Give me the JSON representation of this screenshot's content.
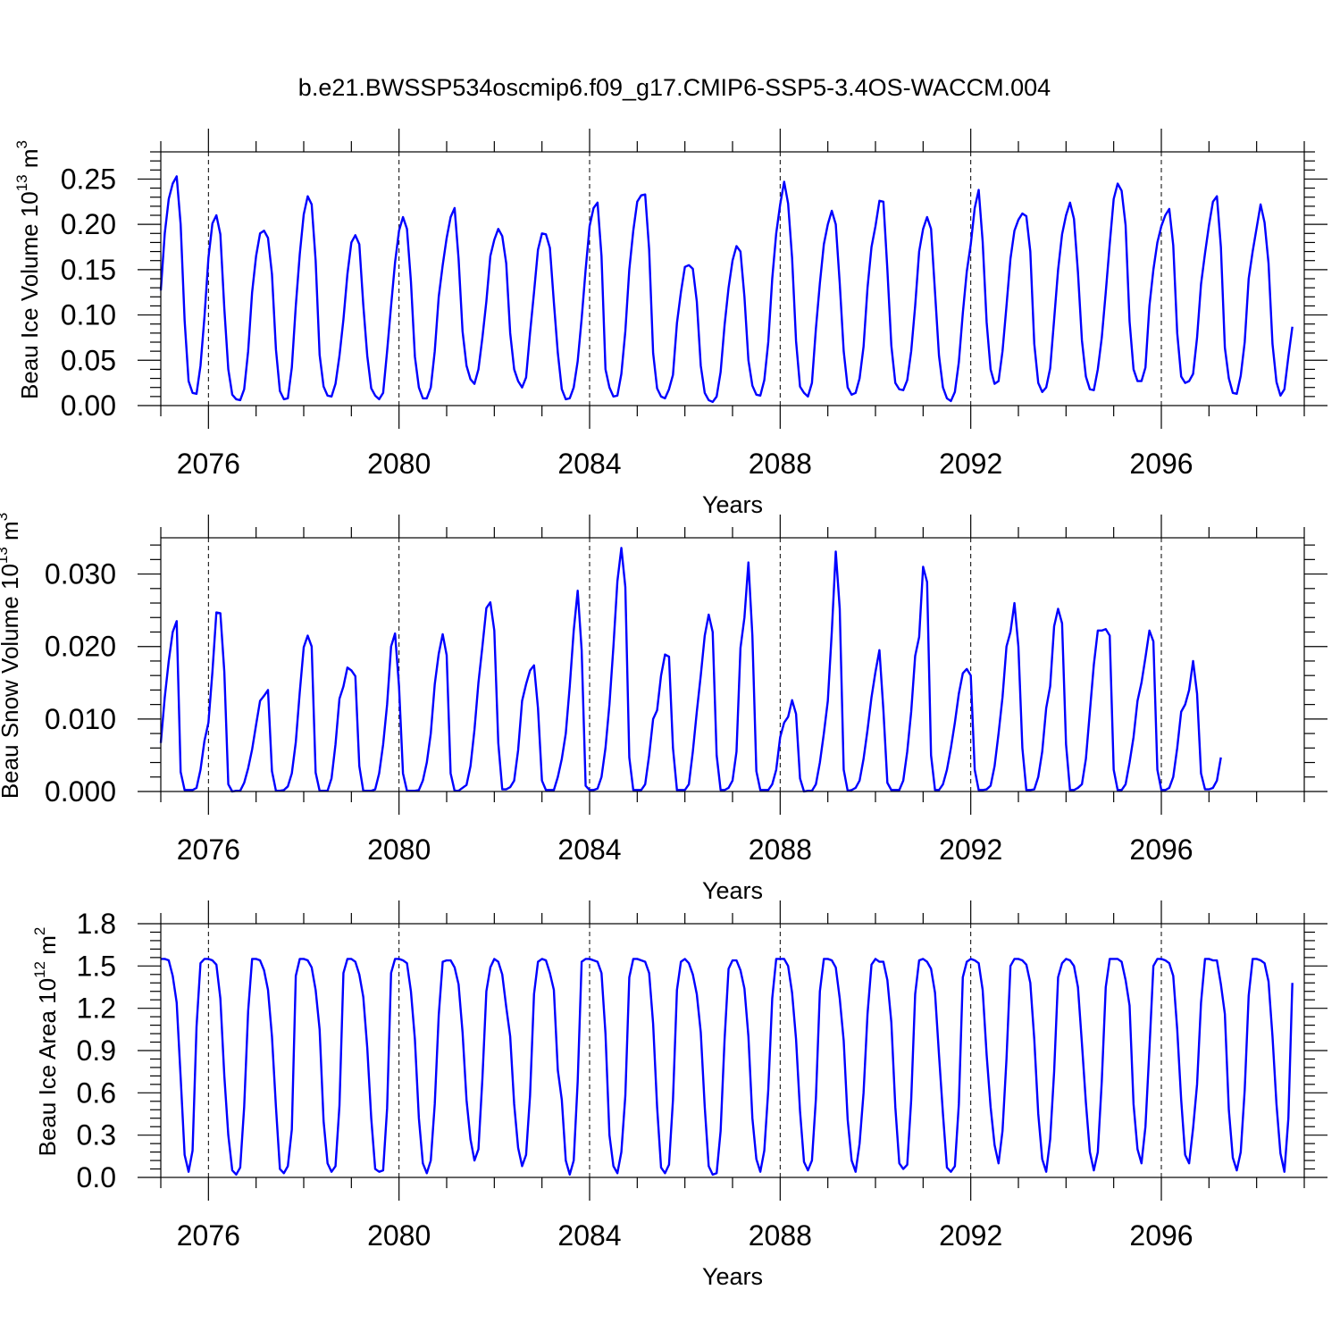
{
  "figure": {
    "title": "b.e21.BWSSP534oscmip6.f09_g17.CMIP6-SSP5-3.4OS-WACCM.004"
  },
  "colors": {
    "series": "#0000ff",
    "axes": "#000000",
    "grid": "#000000"
  },
  "chart_data": [
    {
      "type": "line",
      "ylabel_main": "Beau Ice Volume 10",
      "ylabel_exp": "13",
      "ylabel_unit": " m",
      "ylabel_unit_exp": "3",
      "xlabel": "Years",
      "ylim": [
        0,
        0.28
      ],
      "yticks": [
        "0.00",
        "0.05",
        "0.10",
        "0.15",
        "0.20",
        "0.25"
      ],
      "xticks": [
        "2076",
        "2080",
        "2084",
        "2088",
        "2092",
        "2096"
      ],
      "xlim": [
        2075.0,
        2099.0
      ],
      "series": [
        {
          "start": 2075.0,
          "step_months": 1,
          "values": [
            0.127,
            0.19,
            0.228,
            0.245,
            0.253,
            0.2,
            0.094,
            0.027,
            0.014,
            0.013,
            0.044,
            0.098,
            0.163,
            0.201,
            0.21,
            0.189,
            0.107,
            0.04,
            0.012,
            0.007,
            0.006,
            0.018,
            0.06,
            0.125,
            0.165,
            0.19,
            0.193,
            0.185,
            0.145,
            0.062,
            0.016,
            0.007,
            0.008,
            0.042,
            0.11,
            0.167,
            0.211,
            0.231,
            0.222,
            0.16,
            0.056,
            0.021,
            0.011,
            0.01,
            0.024,
            0.055,
            0.095,
            0.145,
            0.18,
            0.188,
            0.178,
            0.111,
            0.055,
            0.019,
            0.011,
            0.007,
            0.014,
            0.06,
            0.11,
            0.158,
            0.193,
            0.208,
            0.195,
            0.137,
            0.054,
            0.02,
            0.008,
            0.008,
            0.02,
            0.06,
            0.12,
            0.155,
            0.185,
            0.208,
            0.218,
            0.162,
            0.082,
            0.044,
            0.029,
            0.024,
            0.04,
            0.075,
            0.115,
            0.165,
            0.183,
            0.195,
            0.187,
            0.157,
            0.08,
            0.04,
            0.027,
            0.02,
            0.031,
            0.08,
            0.125,
            0.172,
            0.19,
            0.189,
            0.174,
            0.114,
            0.058,
            0.018,
            0.007,
            0.008,
            0.02,
            0.049,
            0.096,
            0.15,
            0.198,
            0.218,
            0.224,
            0.165,
            0.04,
            0.02,
            0.01,
            0.011,
            0.035,
            0.082,
            0.15,
            0.193,
            0.225,
            0.232,
            0.233,
            0.172,
            0.058,
            0.019,
            0.01,
            0.008,
            0.018,
            0.034,
            0.091,
            0.125,
            0.153,
            0.155,
            0.151,
            0.115,
            0.044,
            0.014,
            0.006,
            0.004,
            0.01,
            0.037,
            0.089,
            0.13,
            0.16,
            0.176,
            0.17,
            0.12,
            0.05,
            0.022,
            0.012,
            0.011,
            0.028,
            0.07,
            0.14,
            0.19,
            0.222,
            0.247,
            0.223,
            0.163,
            0.071,
            0.021,
            0.014,
            0.01,
            0.025,
            0.085,
            0.135,
            0.178,
            0.2,
            0.215,
            0.2,
            0.135,
            0.06,
            0.02,
            0.012,
            0.014,
            0.03,
            0.065,
            0.13,
            0.175,
            0.198,
            0.226,
            0.225,
            0.15,
            0.066,
            0.025,
            0.018,
            0.017,
            0.028,
            0.06,
            0.11,
            0.17,
            0.195,
            0.208,
            0.195,
            0.125,
            0.055,
            0.02,
            0.008,
            0.005,
            0.015,
            0.048,
            0.102,
            0.148,
            0.178,
            0.218,
            0.238,
            0.181,
            0.092,
            0.04,
            0.024,
            0.027,
            0.06,
            0.11,
            0.162,
            0.193,
            0.205,
            0.212,
            0.209,
            0.17,
            0.068,
            0.025,
            0.015,
            0.02,
            0.041,
            0.095,
            0.15,
            0.189,
            0.21,
            0.224,
            0.206,
            0.147,
            0.072,
            0.032,
            0.018,
            0.017,
            0.04,
            0.075,
            0.125,
            0.178,
            0.228,
            0.245,
            0.237,
            0.199,
            0.093,
            0.04,
            0.027,
            0.027,
            0.042,
            0.11,
            0.15,
            0.18,
            0.198,
            0.21,
            0.217,
            0.177,
            0.08,
            0.032,
            0.025,
            0.027,
            0.035,
            0.075,
            0.134,
            0.168,
            0.199,
            0.225,
            0.231,
            0.175,
            0.064,
            0.03,
            0.014,
            0.013,
            0.033,
            0.07,
            0.14,
            0.17,
            0.196,
            0.222,
            0.202,
            0.157,
            0.068,
            0.026,
            0.011,
            0.018,
            0.054,
            0.087
          ]
        }
      ]
    },
    {
      "type": "line",
      "ylabel_main": "Beau Snow Volume 10",
      "ylabel_exp": "13",
      "ylabel_unit": " m",
      "ylabel_unit_exp": "3",
      "xlabel": "Years",
      "ylim": [
        0,
        0.035
      ],
      "yticks": [
        "0.000",
        "0.010",
        "0.020",
        "0.030"
      ],
      "xticks": [
        "2076",
        "2080",
        "2084",
        "2088",
        "2092",
        "2096"
      ],
      "xlim": [
        2075.0,
        2099.0
      ],
      "series": [
        {
          "start": 2075.0,
          "step_months": 1,
          "values": [
            0.0067,
            0.013,
            0.018,
            0.022,
            0.0235,
            0.0027,
            0.0002,
            0.0002,
            0.0002,
            0.0005,
            0.003,
            0.007,
            0.0095,
            0.0165,
            0.0247,
            0.0246,
            0.0165,
            0.001,
            0.0,
            0.0001,
            0.0001,
            0.0012,
            0.0032,
            0.0058,
            0.0092,
            0.0125,
            0.0132,
            0.014,
            0.0028,
            0.0001,
            0.0001,
            0.0002,
            0.0007,
            0.0025,
            0.0068,
            0.0137,
            0.0199,
            0.0215,
            0.02,
            0.0026,
            0.0001,
            0.0001,
            0.0001,
            0.0018,
            0.0065,
            0.0128,
            0.0145,
            0.0171,
            0.0167,
            0.0159,
            0.0035,
            0.0001,
            0.0001,
            0.0001,
            0.0003,
            0.0025,
            0.0065,
            0.012,
            0.02,
            0.0218,
            0.0145,
            0.0025,
            0.0001,
            0.0001,
            0.0001,
            0.0002,
            0.0015,
            0.004,
            0.008,
            0.0148,
            0.019,
            0.0217,
            0.0188,
            0.0025,
            0.0001,
            0.0001,
            0.0005,
            0.0009,
            0.0035,
            0.0085,
            0.015,
            0.02,
            0.0253,
            0.0261,
            0.0222,
            0.0067,
            0.0003,
            0.0003,
            0.0006,
            0.0015,
            0.0057,
            0.0125,
            0.0148,
            0.0167,
            0.0174,
            0.0115,
            0.0015,
            0.0002,
            0.0002,
            0.0002,
            0.002,
            0.0045,
            0.008,
            0.0145,
            0.0222,
            0.0277,
            0.0195,
            0.0008,
            0.0002,
            0.0002,
            0.0004,
            0.002,
            0.006,
            0.012,
            0.02,
            0.029,
            0.0336,
            0.0282,
            0.0047,
            0.0002,
            0.0002,
            0.0002,
            0.001,
            0.005,
            0.01,
            0.0112,
            0.016,
            0.0189,
            0.0186,
            0.006,
            0.0002,
            0.0002,
            0.0002,
            0.001,
            0.0055,
            0.011,
            0.016,
            0.0215,
            0.0244,
            0.022,
            0.005,
            0.0002,
            0.0002,
            0.0005,
            0.0015,
            0.0055,
            0.0198,
            0.024,
            0.0316,
            0.0215,
            0.0028,
            0.0002,
            0.0002,
            0.0002,
            0.001,
            0.003,
            0.0075,
            0.0095,
            0.0103,
            0.0126,
            0.0107,
            0.0018,
            0.0,
            0.0001,
            0.0001,
            0.001,
            0.004,
            0.008,
            0.0125,
            0.022,
            0.0331,
            0.0252,
            0.003,
            0.0001,
            0.0002,
            0.0005,
            0.0015,
            0.0045,
            0.0085,
            0.013,
            0.0165,
            0.0195,
            0.0112,
            0.0012,
            0.0002,
            0.0002,
            0.0002,
            0.0015,
            0.0055,
            0.011,
            0.0187,
            0.0213,
            0.031,
            0.0289,
            0.005,
            0.0002,
            0.0002,
            0.001,
            0.003,
            0.006,
            0.0095,
            0.0135,
            0.0163,
            0.0169,
            0.016,
            0.003,
            0.0002,
            0.0002,
            0.0003,
            0.0008,
            0.0035,
            0.008,
            0.013,
            0.02,
            0.022,
            0.026,
            0.02,
            0.006,
            0.0002,
            0.0002,
            0.0003,
            0.002,
            0.0055,
            0.0115,
            0.0145,
            0.0228,
            0.0252,
            0.0232,
            0.0065,
            0.0002,
            0.0002,
            0.0005,
            0.001,
            0.0045,
            0.011,
            0.0175,
            0.0222,
            0.0222,
            0.0224,
            0.0215,
            0.003,
            0.0002,
            0.0002,
            0.001,
            0.004,
            0.0075,
            0.0125,
            0.015,
            0.0185,
            0.0222,
            0.0207,
            0.003,
            0.0002,
            0.0002,
            0.0005,
            0.002,
            0.006,
            0.011,
            0.012,
            0.014,
            0.018,
            0.0135,
            0.0025,
            0.0003,
            0.0003,
            0.0005,
            0.0015,
            0.0047
          ]
        }
      ]
    },
    {
      "type": "line",
      "ylabel_main": "Beau Ice Area 10",
      "ylabel_exp": "12",
      "ylabel_unit": " m",
      "ylabel_unit_exp": "2",
      "xlabel": "Years",
      "ylim": [
        0,
        1.8
      ],
      "yticks": [
        "0.0",
        "0.3",
        "0.6",
        "0.9",
        "1.2",
        "1.5",
        "1.8"
      ],
      "xticks": [
        "2076",
        "2080",
        "2084",
        "2088",
        "2092",
        "2096"
      ],
      "xlim": [
        2075.0,
        2099.0
      ],
      "series": [
        {
          "start": 2075.0,
          "step_months": 1,
          "values": [
            1.55,
            1.55,
            1.54,
            1.43,
            1.24,
            0.71,
            0.16,
            0.04,
            0.19,
            1.07,
            1.52,
            1.55,
            1.55,
            1.54,
            1.51,
            1.27,
            0.72,
            0.3,
            0.05,
            0.02,
            0.07,
            0.5,
            1.18,
            1.55,
            1.55,
            1.54,
            1.47,
            1.33,
            1.0,
            0.5,
            0.06,
            0.03,
            0.08,
            0.34,
            1.43,
            1.55,
            1.55,
            1.54,
            1.49,
            1.33,
            1.05,
            0.4,
            0.1,
            0.04,
            0.08,
            0.51,
            1.45,
            1.55,
            1.55,
            1.53,
            1.44,
            1.28,
            0.92,
            0.42,
            0.06,
            0.04,
            0.05,
            0.49,
            1.45,
            1.55,
            1.55,
            1.54,
            1.52,
            1.32,
            0.98,
            0.42,
            0.1,
            0.03,
            0.12,
            0.52,
            1.15,
            1.53,
            1.54,
            1.54,
            1.49,
            1.37,
            1.03,
            0.55,
            0.27,
            0.12,
            0.2,
            0.7,
            1.32,
            1.49,
            1.55,
            1.53,
            1.44,
            1.21,
            1.0,
            0.52,
            0.21,
            0.08,
            0.16,
            0.58,
            1.3,
            1.53,
            1.55,
            1.54,
            1.45,
            1.33,
            0.76,
            0.55,
            0.12,
            0.02,
            0.12,
            0.68,
            1.53,
            1.55,
            1.55,
            1.54,
            1.53,
            1.45,
            1.02,
            0.3,
            0.08,
            0.03,
            0.18,
            0.58,
            1.42,
            1.55,
            1.55,
            1.54,
            1.53,
            1.45,
            1.09,
            0.5,
            0.07,
            0.03,
            0.09,
            0.55,
            1.33,
            1.53,
            1.55,
            1.52,
            1.44,
            1.3,
            1.03,
            0.5,
            0.08,
            0.02,
            0.03,
            0.33,
            0.98,
            1.48,
            1.54,
            1.54,
            1.47,
            1.34,
            1.0,
            0.42,
            0.13,
            0.04,
            0.19,
            0.62,
            1.27,
            1.55,
            1.55,
            1.55,
            1.5,
            1.31,
            0.98,
            0.47,
            0.11,
            0.05,
            0.12,
            0.56,
            1.32,
            1.55,
            1.55,
            1.54,
            1.49,
            1.27,
            0.97,
            0.41,
            0.12,
            0.04,
            0.24,
            0.6,
            1.16,
            1.51,
            1.55,
            1.53,
            1.53,
            1.4,
            1.1,
            0.5,
            0.1,
            0.06,
            0.09,
            0.55,
            1.3,
            1.54,
            1.55,
            1.53,
            1.48,
            1.31,
            0.87,
            0.45,
            0.07,
            0.04,
            0.08,
            0.52,
            1.42,
            1.53,
            1.55,
            1.54,
            1.52,
            1.33,
            0.87,
            0.5,
            0.23,
            0.1,
            0.33,
            0.84,
            1.5,
            1.55,
            1.55,
            1.54,
            1.51,
            1.38,
            0.98,
            0.45,
            0.13,
            0.04,
            0.27,
            0.75,
            1.42,
            1.52,
            1.55,
            1.54,
            1.5,
            1.35,
            0.95,
            0.53,
            0.18,
            0.05,
            0.18,
            0.68,
            1.35,
            1.55,
            1.55,
            1.55,
            1.53,
            1.4,
            1.22,
            0.52,
            0.2,
            0.1,
            0.36,
            0.91,
            1.5,
            1.55,
            1.55,
            1.54,
            1.52,
            1.43,
            1.05,
            0.55,
            0.16,
            0.1,
            0.35,
            0.66,
            1.24,
            1.55,
            1.55,
            1.54,
            1.54,
            1.37,
            1.16,
            0.48,
            0.14,
            0.05,
            0.18,
            0.62,
            1.29,
            1.55,
            1.55,
            1.54,
            1.52,
            1.39,
            1.0,
            0.52,
            0.17,
            0.04,
            0.42,
            1.38
          ]
        }
      ]
    }
  ]
}
